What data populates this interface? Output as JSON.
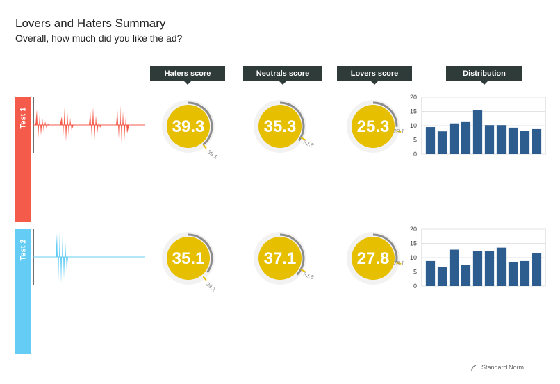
{
  "header": {
    "title": "Lovers and Haters Summary",
    "subtitle": "Overall, how much did you like the ad?"
  },
  "columns": [
    "Haters score",
    "Neutrals score",
    "Lovers score",
    "Distribution"
  ],
  "colors": {
    "test1": "#f45b4b",
    "test2": "#65cdf5",
    "gauge": "#e6bf00",
    "bar": "#2d5d8f",
    "header_bg": "#2f3b38"
  },
  "legend": {
    "label": "Standard Norm"
  },
  "chart_data": [
    {
      "type": "gauge",
      "test": "Test 1",
      "scores": [
        {
          "metric": "Haters score",
          "value": 39.3,
          "norm": 39.1
        },
        {
          "metric": "Neutrals score",
          "value": 35.3,
          "norm": 32.8
        },
        {
          "metric": "Lovers score",
          "value": 25.3,
          "norm": 28.1
        }
      ]
    },
    {
      "type": "bar",
      "test": "Test 1",
      "values": [
        9.5,
        8,
        10.8,
        11.5,
        15.5,
        10.2,
        10.2,
        9.3,
        8.2,
        8.8
      ],
      "ylim": [
        0,
        20
      ],
      "yticks": [
        0,
        5,
        10,
        15,
        20
      ]
    },
    {
      "type": "gauge",
      "test": "Test 2",
      "scores": [
        {
          "metric": "Haters score",
          "value": 35.1,
          "norm": 39.1
        },
        {
          "metric": "Neutrals score",
          "value": 37.1,
          "norm": 32.8
        },
        {
          "metric": "Lovers score",
          "value": 27.8,
          "norm": 28.1
        }
      ]
    },
    {
      "type": "bar",
      "test": "Test 2",
      "values": [
        8.8,
        6.8,
        12.8,
        7.5,
        12.2,
        12.2,
        13.5,
        8.3,
        8.8,
        11.5
      ],
      "ylim": [
        0,
        20
      ],
      "yticks": [
        0,
        5,
        10,
        15,
        20
      ]
    }
  ]
}
